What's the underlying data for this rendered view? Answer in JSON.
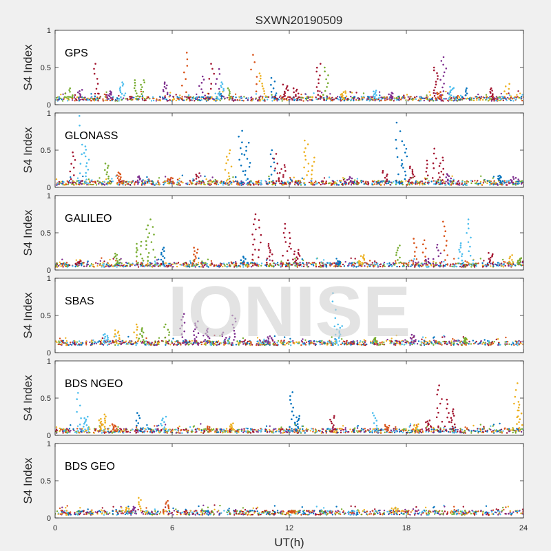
{
  "figure": {
    "title": "SXWN20190509",
    "watermark": "IONISE"
  },
  "chart_data": {
    "type": "scatter",
    "title": "SXWN20190509",
    "xlabel": "UT(h)",
    "xlim": [
      0,
      24
    ],
    "xticks": [
      0,
      6,
      12,
      18,
      24
    ],
    "grid": false,
    "legend": false,
    "series_colors": [
      "#0072bd",
      "#d95319",
      "#edb120",
      "#7e2f8e",
      "#77ac30",
      "#4dbeee",
      "#a2142f"
    ],
    "panels": [
      {
        "name": "GPS",
        "ylabel": "S4 Index",
        "ylim": [
          0,
          1
        ],
        "yticks": [
          0,
          0.5,
          1
        ],
        "baseline": 0.08,
        "spikes": [
          [
            0.7,
            0.22,
            4
          ],
          [
            1.3,
            0.2,
            3
          ],
          [
            2.1,
            0.55,
            6
          ],
          [
            2.8,
            0.18,
            3
          ],
          [
            3.4,
            0.3,
            5
          ],
          [
            4.2,
            0.33,
            4
          ],
          [
            4.5,
            0.33,
            4
          ],
          [
            5.7,
            0.3,
            3
          ],
          [
            6.7,
            0.7,
            1
          ],
          [
            7.5,
            0.38,
            3
          ],
          [
            8.0,
            0.55,
            6
          ],
          [
            8.3,
            0.48,
            3
          ],
          [
            8.5,
            0.3,
            5
          ],
          [
            8.9,
            0.22,
            4
          ],
          [
            10.2,
            0.67,
            1
          ],
          [
            10.6,
            0.42,
            2
          ],
          [
            11.2,
            0.36,
            0
          ],
          [
            11.8,
            0.27,
            6
          ],
          [
            12.3,
            0.22,
            6
          ],
          [
            13.5,
            0.55,
            6
          ],
          [
            13.9,
            0.5,
            4
          ],
          [
            14.8,
            0.18,
            2
          ],
          [
            16.4,
            0.19,
            5
          ],
          [
            17.2,
            0.16,
            3
          ],
          [
            19.5,
            0.5,
            6
          ],
          [
            19.7,
            0.17,
            1
          ],
          [
            19.9,
            0.64,
            3
          ],
          [
            20.3,
            0.24,
            5
          ],
          [
            21.1,
            0.22,
            0
          ],
          [
            22.4,
            0.22,
            6
          ],
          [
            23.2,
            0.28,
            2
          ]
        ]
      },
      {
        "name": "GLONASS",
        "ylabel": "S4 Index",
        "ylim": [
          0,
          1
        ],
        "yticks": [
          0,
          0.5,
          1
        ],
        "baseline": 0.06,
        "spikes": [
          [
            0.9,
            0.47,
            6
          ],
          [
            1.3,
            0.96,
            5
          ],
          [
            1.6,
            0.55,
            5
          ],
          [
            2.7,
            0.32,
            4
          ],
          [
            3.3,
            0.2,
            1
          ],
          [
            4.3,
            0.15,
            3
          ],
          [
            5.9,
            0.13,
            1
          ],
          [
            7.3,
            0.19,
            6
          ],
          [
            8.9,
            0.5,
            2
          ],
          [
            9.5,
            0.76,
            0
          ],
          [
            9.8,
            0.6,
            0
          ],
          [
            11.1,
            0.5,
            0
          ],
          [
            11.3,
            0.45,
            6
          ],
          [
            11.7,
            0.3,
            6
          ],
          [
            12.9,
            0.63,
            2
          ],
          [
            13.2,
            0.4,
            2
          ],
          [
            15.1,
            0.14,
            3
          ],
          [
            16.9,
            0.22,
            6
          ],
          [
            17.6,
            0.87,
            0
          ],
          [
            17.9,
            0.62,
            0
          ],
          [
            18.3,
            0.28,
            6
          ],
          [
            19.0,
            0.36,
            6
          ],
          [
            19.5,
            0.52,
            6
          ],
          [
            19.8,
            0.4,
            6
          ],
          [
            20.2,
            0.18,
            3
          ],
          [
            22.8,
            0.15,
            0
          ],
          [
            23.5,
            0.14,
            3
          ]
        ]
      },
      {
        "name": "GALILEO",
        "ylabel": "S4 Index",
        "ylim": [
          0,
          1
        ],
        "yticks": [
          0,
          0.5,
          1
        ],
        "baseline": 0.07,
        "spikes": [
          [
            1.2,
            0.12,
            6
          ],
          [
            3.2,
            0.22,
            4
          ],
          [
            4.3,
            0.38,
            4
          ],
          [
            4.7,
            0.6,
            4
          ],
          [
            5.0,
            0.68,
            4
          ],
          [
            5.5,
            0.3,
            0
          ],
          [
            7.2,
            0.3,
            1
          ],
          [
            9.6,
            0.18,
            0
          ],
          [
            10.2,
            0.75,
            6
          ],
          [
            10.5,
            0.67,
            6
          ],
          [
            11.0,
            0.35,
            6
          ],
          [
            11.8,
            0.62,
            6
          ],
          [
            12.1,
            0.5,
            6
          ],
          [
            12.4,
            0.27,
            6
          ],
          [
            14.5,
            0.12,
            0
          ],
          [
            15.7,
            0.2,
            2
          ],
          [
            17.6,
            0.33,
            4
          ],
          [
            18.4,
            0.42,
            1
          ],
          [
            18.9,
            0.4,
            1
          ],
          [
            19.1,
            0.15,
            3
          ],
          [
            19.6,
            0.34,
            3
          ],
          [
            20.0,
            0.65,
            1
          ],
          [
            20.8,
            0.36,
            5
          ],
          [
            21.2,
            0.68,
            5
          ],
          [
            22.3,
            0.23,
            6
          ],
          [
            23.3,
            0.2,
            2
          ],
          [
            23.8,
            0.16,
            4
          ]
        ]
      },
      {
        "name": "SBAS",
        "ylabel": "S4 Index",
        "ylim": [
          0,
          1
        ],
        "yticks": [
          0,
          0.5,
          1
        ],
        "baseline": 0.13,
        "spikes": [
          [
            2.6,
            0.25,
            5
          ],
          [
            3.2,
            0.3,
            2
          ],
          [
            4.2,
            0.38,
            2
          ],
          [
            4.5,
            0.33,
            4
          ],
          [
            5.7,
            0.38,
            4
          ],
          [
            6.5,
            0.52,
            3
          ],
          [
            7.2,
            0.42,
            3
          ],
          [
            7.8,
            0.32,
            3
          ],
          [
            8.6,
            0.27,
            3
          ],
          [
            9.2,
            0.5,
            3
          ],
          [
            11.0,
            0.22,
            3
          ],
          [
            14.3,
            0.8,
            5
          ],
          [
            14.6,
            0.38,
            5
          ],
          [
            16.4,
            0.2,
            4
          ],
          [
            18.3,
            0.24,
            3
          ],
          [
            21.0,
            0.2,
            4
          ]
        ]
      },
      {
        "name": "BDS NGEO",
        "ylabel": "S4 Index",
        "ylim": [
          0,
          1
        ],
        "yticks": [
          0,
          0.5,
          1
        ],
        "baseline": 0.06,
        "spikes": [
          [
            1.2,
            0.57,
            5
          ],
          [
            1.6,
            0.25,
            5
          ],
          [
            2.3,
            0.22,
            2
          ],
          [
            2.6,
            0.28,
            2
          ],
          [
            3.0,
            0.15,
            1
          ],
          [
            4.3,
            0.3,
            0
          ],
          [
            5.6,
            0.25,
            5
          ],
          [
            7.8,
            0.12,
            1
          ],
          [
            9.1,
            0.16,
            2
          ],
          [
            12.1,
            0.58,
            0
          ],
          [
            12.4,
            0.26,
            0
          ],
          [
            14.2,
            0.26,
            6
          ],
          [
            16.4,
            0.3,
            5
          ],
          [
            17.0,
            0.14,
            1
          ],
          [
            18.5,
            0.15,
            2
          ],
          [
            19.1,
            0.2,
            6
          ],
          [
            19.7,
            0.67,
            6
          ],
          [
            20.1,
            0.48,
            6
          ],
          [
            20.4,
            0.35,
            6
          ],
          [
            23.6,
            0.7,
            2
          ],
          [
            23.8,
            0.45,
            2
          ]
        ]
      },
      {
        "name": "BDS GEO",
        "ylabel": "S4 Index",
        "ylim": [
          0,
          1
        ],
        "yticks": [
          0,
          0.5,
          1
        ],
        "baseline": 0.07,
        "spikes": [
          [
            3.7,
            0.14,
            2
          ],
          [
            4.0,
            0.15,
            3
          ],
          [
            4.4,
            0.27,
            2
          ],
          [
            5.7,
            0.23,
            1
          ],
          [
            12.2,
            0.1,
            1
          ],
          [
            17.5,
            0.14,
            2
          ]
        ]
      }
    ]
  }
}
